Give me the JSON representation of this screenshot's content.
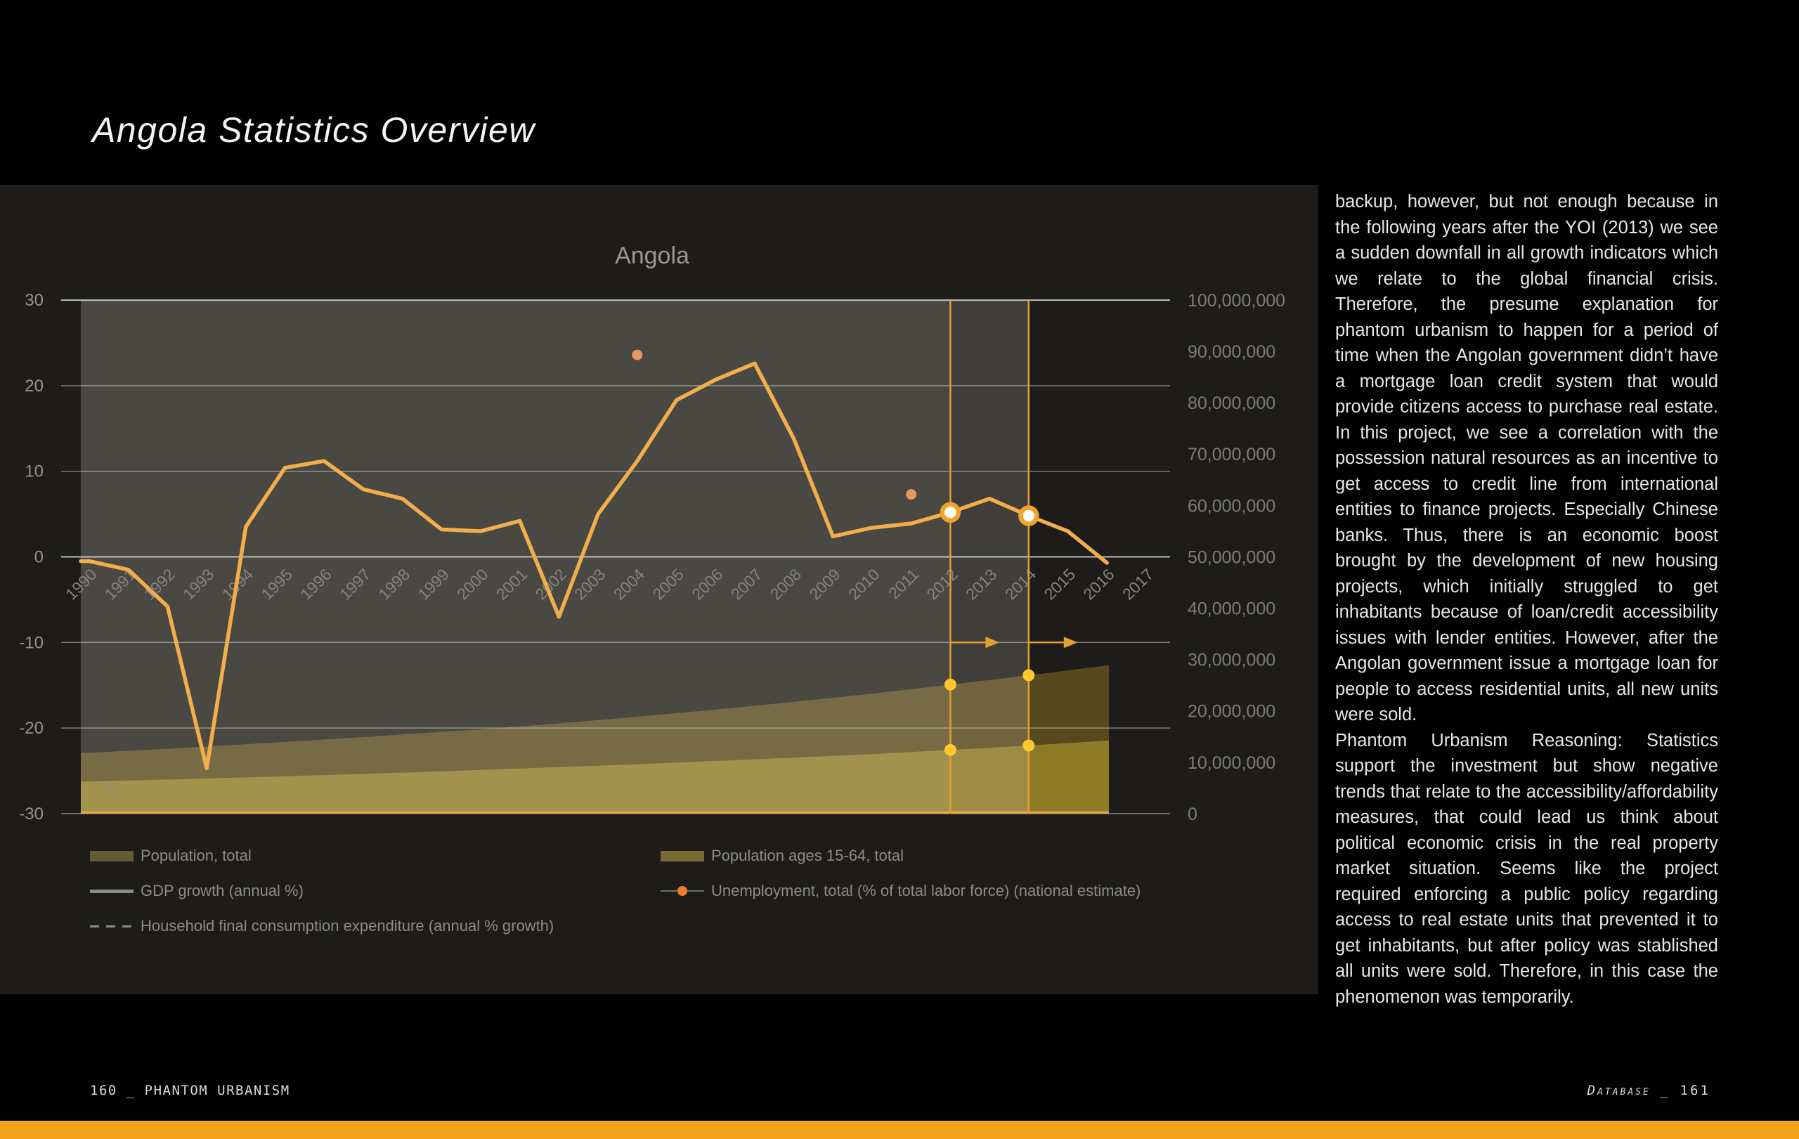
{
  "page": {
    "title": "Angola Statistics Overview",
    "footer_left": "160 _ PHANTOM URBANISM",
    "footer_right_name": "Database",
    "footer_right_page": "_ 161",
    "accent_bar_color": "#F4A41B"
  },
  "chart_data": {
    "type": "combo: area + line + scatter",
    "title": "Angola",
    "x": [
      1990,
      1991,
      1992,
      1993,
      1994,
      1995,
      1996,
      1997,
      1998,
      1999,
      2000,
      2001,
      2002,
      2003,
      2004,
      2005,
      2006,
      2007,
      2008,
      2009,
      2010,
      2011,
      2012,
      2013,
      2014,
      2015,
      2016,
      2017
    ],
    "left_axis": {
      "unit_label": "%",
      "ticks": [
        30,
        20,
        10,
        0,
        -10,
        -20,
        -30
      ],
      "range": [
        -30,
        30
      ]
    },
    "right_axis": {
      "ticks": [
        "100,000,000",
        "90,000,000",
        "80,000,000",
        "70,000,000",
        "60,000,000",
        "50,000,000",
        "40,000,000",
        "30,000,000",
        "20,000,000",
        "10,000,000",
        "0"
      ],
      "range": [
        0,
        100000000
      ]
    },
    "series": [
      {
        "name": "Population, total",
        "type": "area",
        "axis": "right",
        "values_million": [
          11.83,
          12.23,
          12.63,
          13.05,
          13.5,
          13.95,
          14.42,
          14.9,
          15.4,
          15.92,
          16.4,
          16.98,
          17.57,
          18.2,
          18.87,
          19.55,
          20.26,
          20.99,
          21.76,
          22.55,
          23.36,
          24.22,
          25.11,
          26.02,
          26.94,
          27.88,
          28.84
        ]
      },
      {
        "name": "Population ages 15-64, total",
        "type": "area",
        "axis": "right",
        "values_million": [
          6.25,
          6.44,
          6.64,
          6.84,
          7.05,
          7.26,
          7.49,
          7.73,
          7.98,
          8.23,
          8.5,
          8.77,
          9.05,
          9.33,
          9.62,
          9.92,
          10.24,
          10.56,
          10.9,
          11.24,
          11.6,
          11.99,
          12.39,
          12.82,
          13.26,
          13.73,
          14.22
        ]
      },
      {
        "name": "GDP growth (annual %)",
        "type": "line",
        "axis": "left",
        "values": [
          -0.5,
          -1.5,
          -5.8,
          -24.7,
          3.5,
          10.4,
          11.2,
          7.9,
          6.8,
          3.2,
          3.0,
          4.2,
          -7.0,
          5.0,
          11.2,
          18.3,
          20.7,
          22.6,
          13.8,
          2.4,
          3.4,
          3.9,
          5.2,
          6.8,
          4.8,
          3.0,
          -0.7
        ]
      },
      {
        "name": "Unemployment, total (% of total labor force) (national estimate)",
        "type": "scatter",
        "axis": "left",
        "points": [
          {
            "x": 2004,
            "y": 23.6
          },
          {
            "x": 2011,
            "y": 7.3
          }
        ]
      },
      {
        "name": "Household final consumption expenditure (annual % growth)",
        "type": "dashed-line",
        "axis": "left",
        "values": []
      }
    ],
    "annotations": {
      "vline_years": [
        2012,
        2014
      ],
      "arrow_at_value": -10,
      "gdp_ring_years": [
        2012,
        2014
      ],
      "area_dot_years": [
        2012,
        2014
      ]
    },
    "colors": {
      "gdp_line": "#F2AE4A",
      "scatter": "#E89662",
      "vline": "#E39F2F",
      "ring": "#F0A42C",
      "dot": "#FFC72E",
      "area_total": "#57491E",
      "area_1564": "#8F7A26",
      "baseline": "#E9AC40",
      "grid": "#D8D8D5",
      "axis_text": "#95938F",
      "right_axis_text": "#7D7C79",
      "year_text": "#85837F",
      "chart_title_text": "#9B9894",
      "veil_left": "rgba(240,234,224,0.21)",
      "veil_mid": "rgba(235,229,220,0.17)"
    }
  },
  "legend": {
    "items": [
      {
        "label": "Population, total",
        "swatch": "area",
        "color": "#635934"
      },
      {
        "label": "GDP growth (annual %)",
        "swatch": "line",
        "color": "#8A8A88"
      },
      {
        "label": "Household final consumption expenditure (annual % growth)",
        "swatch": "dashed",
        "color": "#8A8A88"
      },
      {
        "label": "Population ages 15-64, total",
        "swatch": "area",
        "color": "#7A6A33"
      },
      {
        "label": "Unemployment, total (% of total labor force) (national estimate)",
        "swatch": "linedot",
        "color": "#ED7D2E"
      }
    ]
  },
  "sidebar": {
    "paragraphs": [
      "backup, however, but not enough because in the following years after the YOI (2013) we see a sudden downfall in all growth indicators which we relate to the global financial crisis. Therefore, the presume explanation for phantom urbanism to happen for a period of time when the Angolan government didn’t have a mortgage loan credit system that would provide citizens access to purchase real estate. In this project, we see a correlation with the possession natural resources as an incentive to get access to credit line from international entities to finance projects. Especially Chinese banks. Thus, there is an economic boost brought by the development of new housing projects, which initially struggled to get inhabitants because of loan/credit accessibility issues with lender entities. However, after the Angolan government issue a mortgage loan for people to access residential units, all new units were sold.",
      "Phantom Urbanism Reasoning: Statistics support the investment but show negative trends that relate to the accessibility/affordability measures, that could lead us think about political economic crisis in the real property market situation. Seems like the project required enforcing a public policy regarding access to real estate units that prevented it to get inhabitants, but after policy was stablished all units were sold. Therefore, in this case the phenomenon was temporarily."
    ]
  }
}
